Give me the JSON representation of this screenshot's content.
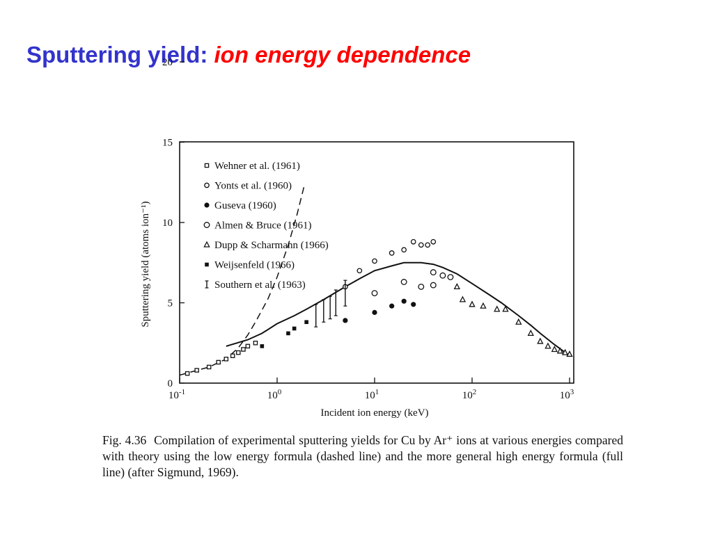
{
  "slide": {
    "title_plain": "Sputtering yield:",
    "title_italic": "ion energy dependence",
    "colors": {
      "title_plain": "#3333cc",
      "title_italic": "#ff0000"
    }
  },
  "caption": {
    "fig_number": "Fig. 4.36",
    "text": "Compilation of experimental sputtering yields for Cu by Ar⁺ ions at various energies compared with theory using the low energy formula (dashed line) and the more general high energy formula (full line) (after Sigmund, 1969)."
  },
  "chart_data": {
    "type": "scatter",
    "xlabel": "Incident ion energy (keV)",
    "ylabel": "Sputtering yield (atoms ion⁻¹)",
    "x_scale": "log",
    "xlim": [
      0.1,
      1000
    ],
    "ylim": [
      0,
      25
    ],
    "x_ticks": [
      {
        "value": 0.1,
        "base": "10",
        "exp": "-1"
      },
      {
        "value": 1,
        "base": "10",
        "exp": "0"
      },
      {
        "value": 10,
        "base": "10",
        "exp": "1"
      },
      {
        "value": 100,
        "base": "10",
        "exp": "2"
      },
      {
        "value": 1000,
        "base": "10",
        "exp": "3"
      }
    ],
    "y_ticks": [
      {
        "value": 0,
        "label": "0"
      },
      {
        "value": 5,
        "label": "5"
      },
      {
        "value": 10,
        "label": "10"
      },
      {
        "value": 15,
        "label": "15"
      },
      {
        "value": 20,
        "label": "20"
      },
      {
        "value": 25,
        "label": ""
      }
    ],
    "grid": false,
    "legend_position": "top-left",
    "series": [
      {
        "name": "Wehner et al. (1961)",
        "marker": "open-square",
        "points": [
          [
            0.12,
            0.6
          ],
          [
            0.15,
            0.8
          ],
          [
            0.2,
            1.0
          ],
          [
            0.25,
            1.3
          ],
          [
            0.3,
            1.5
          ],
          [
            0.35,
            1.7
          ],
          [
            0.4,
            1.9
          ],
          [
            0.45,
            2.1
          ],
          [
            0.5,
            2.3
          ],
          [
            0.6,
            2.5
          ]
        ]
      },
      {
        "name": "Yonts et al. (1960)",
        "marker": "open-diamond",
        "points": [
          [
            5,
            6.0
          ],
          [
            7,
            7.0
          ],
          [
            10,
            7.6
          ],
          [
            15,
            8.1
          ],
          [
            20,
            8.3
          ],
          [
            25,
            8.8
          ],
          [
            30,
            8.6
          ],
          [
            35,
            8.6
          ],
          [
            40,
            8.8
          ]
        ]
      },
      {
        "name": "Guseva (1960)",
        "marker": "filled-circle",
        "points": [
          [
            5,
            3.9
          ],
          [
            10,
            4.4
          ],
          [
            15,
            4.8
          ],
          [
            20,
            5.1
          ],
          [
            25,
            4.9
          ]
        ]
      },
      {
        "name": "Almen & Bruce (1961)",
        "marker": "open-circle",
        "points": [
          [
            10,
            5.6
          ],
          [
            20,
            6.3
          ],
          [
            30,
            6.0
          ],
          [
            40,
            6.1
          ],
          [
            40,
            6.9
          ],
          [
            50,
            6.7
          ],
          [
            60,
            6.6
          ]
        ]
      },
      {
        "name": "Dupp & Scharmann (1966)",
        "marker": "open-triangle",
        "points": [
          [
            70,
            6.0
          ],
          [
            80,
            5.2
          ],
          [
            100,
            4.9
          ],
          [
            130,
            4.8
          ],
          [
            180,
            4.6
          ],
          [
            220,
            4.6
          ],
          [
            300,
            3.8
          ],
          [
            400,
            3.1
          ],
          [
            500,
            2.6
          ],
          [
            600,
            2.3
          ],
          [
            700,
            2.1
          ],
          [
            800,
            2.0
          ],
          [
            900,
            1.9
          ],
          [
            1000,
            1.8
          ]
        ]
      },
      {
        "name": "Weijsenfeld (1966)",
        "marker": "filled-square",
        "points": [
          [
            0.7,
            2.3
          ],
          [
            1.3,
            3.1
          ],
          [
            1.5,
            3.4
          ],
          [
            2,
            3.8
          ]
        ]
      },
      {
        "name": "Southern et al. (1963)",
        "marker": "error-bar",
        "points": [
          [
            2.5,
            4.2,
            0.7
          ],
          [
            3,
            4.5,
            0.7
          ],
          [
            3.5,
            4.7,
            0.7
          ],
          [
            4,
            5.0,
            0.8
          ],
          [
            5,
            5.6,
            0.8
          ]
        ]
      },
      {
        "name": "",
        "marker": "line-dashed",
        "label": "low energy formula",
        "points": [
          [
            0.1,
            0.5
          ],
          [
            0.2,
            1.0
          ],
          [
            0.3,
            1.5
          ],
          [
            0.4,
            2.2
          ],
          [
            0.5,
            3.0
          ],
          [
            0.6,
            3.8
          ],
          [
            0.8,
            5.2
          ],
          [
            1.0,
            6.6
          ],
          [
            1.3,
            8.6
          ],
          [
            1.6,
            10.5
          ],
          [
            1.9,
            12.3
          ]
        ]
      },
      {
        "name": "",
        "marker": "line-solid",
        "label": "high energy formula",
        "points": [
          [
            0.3,
            2.3
          ],
          [
            0.5,
            2.7
          ],
          [
            0.7,
            3.1
          ],
          [
            1,
            3.7
          ],
          [
            1.5,
            4.2
          ],
          [
            2,
            4.6
          ],
          [
            3,
            5.2
          ],
          [
            5,
            6.0
          ],
          [
            7,
            6.5
          ],
          [
            10,
            7.0
          ],
          [
            15,
            7.3
          ],
          [
            20,
            7.5
          ],
          [
            30,
            7.5
          ],
          [
            40,
            7.4
          ],
          [
            50,
            7.2
          ],
          [
            70,
            6.8
          ],
          [
            100,
            6.2
          ],
          [
            150,
            5.5
          ],
          [
            200,
            5.0
          ],
          [
            300,
            4.2
          ],
          [
            400,
            3.6
          ],
          [
            500,
            3.1
          ],
          [
            700,
            2.4
          ],
          [
            1000,
            1.7
          ]
        ]
      }
    ]
  }
}
